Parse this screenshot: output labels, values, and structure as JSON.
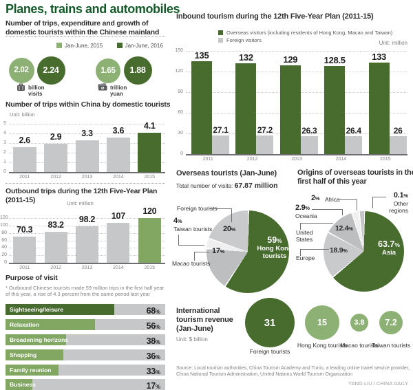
{
  "title": "Planes, trains and automobiles",
  "source": "Source: Local tourism authorities, China Tourism Academy and Tuniu, a leading online travel service provider, China National Tourism Administration, United Nations World Tourism Organization",
  "credit": "YANG LIU / CHINA DAILY",
  "colors": {
    "title_green": "#145a28",
    "dark_green": "#486b2e",
    "mid_green": "#81a763",
    "light_green": "#8db174",
    "bar_gray": "#c6c7c9",
    "axis_gray": "#6d6e71",
    "text_gray": "#808285"
  },
  "summary": {
    "heading": "Number of trips, expenditure and growth of domestic tourists within the Chinese mainland",
    "legend": [
      {
        "label": "Jan-June, 2015",
        "color": "#8db174"
      },
      {
        "label": "Jan-June, 2016",
        "color": "#486b2e"
      }
    ],
    "groups": [
      {
        "circles": [
          {
            "text": "2.02",
            "color": "#8db174"
          },
          {
            "text": "2.24",
            "color": "#486b2e"
          }
        ],
        "icon": "suitcase-icon",
        "label": "billion visits"
      },
      {
        "circles": [
          {
            "text": "1.65",
            "color": "#8db174"
          },
          {
            "text": "1.88",
            "color": "#486b2e"
          }
        ],
        "icon": "money-icon",
        "label": "trillion yuan"
      }
    ]
  },
  "chart_data": [
    {
      "id": "domestic_trips",
      "type": "bar",
      "title": "Number of trips within China by domestic tourists",
      "unit": "Unit: billion",
      "categories": [
        "2011",
        "2012",
        "2013",
        "2014",
        "2015"
      ],
      "values": [
        2.6,
        2.9,
        3.3,
        3.6,
        4.1
      ],
      "labels": [
        "2.6",
        "2.9",
        "3.3",
        "3.6",
        "4.1"
      ],
      "ylim": [
        0,
        5
      ],
      "yticks": [
        0,
        1,
        2,
        3,
        4,
        5
      ],
      "highlight_color": "#486b2e",
      "grid": true,
      "legend_position": "none"
    },
    {
      "id": "outbound_trips",
      "type": "bar",
      "title": "Outbound trips during the 12th Five-Year Plan (2011-15)",
      "unit": "Unit: million",
      "categories": [
        "2011",
        "2012",
        "2013",
        "2014",
        "2015"
      ],
      "values": [
        70.3,
        83.2,
        98.2,
        107,
        120
      ],
      "labels": [
        "70.3",
        "83.2",
        "98.2",
        "107",
        "120"
      ],
      "ylim": [
        0,
        120
      ],
      "yticks": [
        0,
        20,
        40,
        60,
        80,
        100,
        120
      ],
      "highlight_color": "#81a763",
      "grid": true,
      "legend_position": "none"
    },
    {
      "id": "purpose_of_visit",
      "type": "bar-horizontal",
      "title": "Purpose of visit",
      "note": "* Outbound Chinese tourists made 59 million trips in the first half year of this year, a rise of 4.3 percent from the same period last year",
      "categories": [
        "Sightseeing/leisure",
        "Relaxation",
        "Broadening horizons",
        "Shopping",
        "Family reunion",
        "Business"
      ],
      "values": [
        68,
        56,
        38,
        36,
        33,
        17
      ],
      "unit_suffix": "%",
      "colors": [
        "#486b2e",
        "#81a763",
        "#81a763",
        "#81a763",
        "#81a763",
        "#81a763"
      ],
      "track_color": "#c6c7c9",
      "xlim": [
        0,
        100
      ]
    },
    {
      "id": "inbound_tourism",
      "type": "bar-grouped",
      "title": "Inbound tourism during the 12th Five-Year Plan (2011-15)",
      "unit": "Unit: million",
      "categories": [
        "2011",
        "2012",
        "2013",
        "2014",
        "2015"
      ],
      "series": [
        {
          "name": "Overseas visitors (including residents of Hong Kong, Macao and Taiwan)",
          "color": "#486b2e",
          "values": [
            135,
            132,
            129,
            128.5,
            133
          ],
          "labels": [
            "135",
            "132",
            "129",
            "128.5",
            "133"
          ]
        },
        {
          "name": "Foreign visitors",
          "color": "#c6c7c9",
          "values": [
            27.1,
            27.2,
            26.3,
            26.4,
            26
          ],
          "labels": [
            "27.1",
            "27.2",
            "26.3",
            "26.4",
            "26"
          ]
        }
      ],
      "ylim": [
        0,
        150
      ],
      "yticks": [
        0,
        30,
        60,
        90,
        120,
        150
      ],
      "grid": true,
      "legend_position": "top"
    },
    {
      "id": "overseas_tourists",
      "type": "pie",
      "title": "Overseas tourists (Jan-June)",
      "subtitle_prefix": "Total number of visits: ",
      "subtitle_value": "67.87 million",
      "slices": [
        {
          "label": "Hong Kong tourists",
          "value": 59,
          "color": "#486b2e"
        },
        {
          "label": "Macao tourists",
          "value": 17,
          "color": "#bdbec0"
        },
        {
          "label": "Taiwan tourists",
          "value": 4,
          "color": "#efeff0"
        },
        {
          "label": "Foreign tourists",
          "value": 20,
          "color": "#c9cacc"
        }
      ]
    },
    {
      "id": "origins_of_overseas_tourists",
      "type": "pie",
      "title": "Origins of overseas tourists in the first half of this year",
      "slices": [
        {
          "label": "Asia",
          "value": 63.7,
          "color": "#486b2e"
        },
        {
          "label": "Europe",
          "value": 18.9,
          "color": "#c9cacc"
        },
        {
          "label": "United States",
          "value": 12.4,
          "color": "#bdbec0"
        },
        {
          "label": "Oceania",
          "value": 2.9,
          "color": "#efeff0"
        },
        {
          "label": "Africa",
          "value": 2,
          "color": "#c4c5c7"
        },
        {
          "label": "Other regions",
          "value": 0.1,
          "color": "#808285"
        }
      ]
    },
    {
      "id": "international_tourism_revenue",
      "type": "bubble",
      "title": "International tourism revenue (Jan-June)",
      "unit": "Unit: $ billion",
      "categories": [
        "Foreign tourists",
        "Hong Kong tourists",
        "Macao tourists",
        "Taiwan tourists"
      ],
      "values": [
        31,
        15,
        3.8,
        7.2
      ],
      "labels": [
        "31",
        "15",
        "3.8",
        "7.2"
      ],
      "colors": [
        "#486b2e",
        "#8db174",
        "#8db174",
        "#8db174"
      ]
    }
  ]
}
